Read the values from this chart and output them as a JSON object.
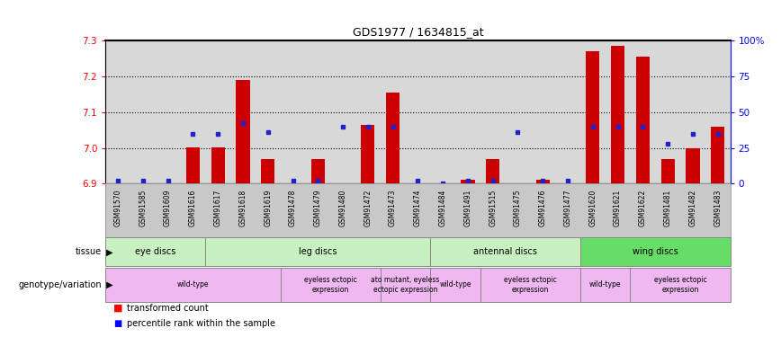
{
  "title": "GDS1977 / 1634815_at",
  "samples": [
    "GSM91570",
    "GSM91585",
    "GSM91609",
    "GSM91616",
    "GSM91617",
    "GSM91618",
    "GSM91619",
    "GSM91478",
    "GSM91479",
    "GSM91480",
    "GSM91472",
    "GSM91473",
    "GSM91474",
    "GSM91484",
    "GSM91491",
    "GSM91515",
    "GSM91475",
    "GSM91476",
    "GSM91477",
    "GSM91620",
    "GSM91621",
    "GSM91622",
    "GSM91481",
    "GSM91482",
    "GSM91483"
  ],
  "red_values": [
    6.902,
    6.902,
    6.902,
    7.002,
    7.002,
    7.19,
    6.968,
    6.902,
    6.968,
    6.902,
    7.065,
    7.155,
    6.902,
    6.902,
    6.912,
    6.968,
    6.902,
    6.912,
    6.902,
    7.27,
    7.285,
    7.255,
    6.968,
    7.0,
    7.06
  ],
  "blue_pct": [
    2,
    2,
    2,
    35,
    35,
    42,
    36,
    2,
    2,
    40,
    40,
    40,
    2,
    0,
    2,
    2,
    36,
    2,
    2,
    40,
    40,
    40,
    28,
    35,
    35
  ],
  "ylim_left": [
    6.9,
    7.3
  ],
  "ylim_right": [
    0,
    100
  ],
  "yticks_left": [
    6.9,
    7.0,
    7.1,
    7.2,
    7.3
  ],
  "yticks_right": [
    0,
    25,
    50,
    75,
    100
  ],
  "tissue_groups": [
    {
      "label": "eye discs",
      "start": 0,
      "end": 4,
      "color": "#c8f0c0"
    },
    {
      "label": "leg discs",
      "start": 4,
      "end": 13,
      "color": "#c8f0c0"
    },
    {
      "label": "antennal discs",
      "start": 13,
      "end": 19,
      "color": "#c8f0c0"
    },
    {
      "label": "wing discs",
      "start": 19,
      "end": 25,
      "color": "#66dd66"
    }
  ],
  "genotype_groups": [
    {
      "label": "wild-type",
      "start": 0,
      "end": 7
    },
    {
      "label": "eyeless ectopic\nexpression",
      "start": 7,
      "end": 11
    },
    {
      "label": "ato mutant, eyeless\nectopic expression",
      "start": 11,
      "end": 13
    },
    {
      "label": "wild-type",
      "start": 13,
      "end": 15
    },
    {
      "label": "eyeless ectopic\nexpression",
      "start": 15,
      "end": 19
    },
    {
      "label": "wild-type",
      "start": 19,
      "end": 21
    },
    {
      "label": "eyeless ectopic\nexpression",
      "start": 21,
      "end": 25
    }
  ],
  "genotype_color": "#f0b8f0",
  "bar_color": "#cc0000",
  "dot_color": "#2222cc",
  "bg_color": "#d8d8d8",
  "sample_bg_color": "#c8c8c8",
  "title_fontsize": 9
}
